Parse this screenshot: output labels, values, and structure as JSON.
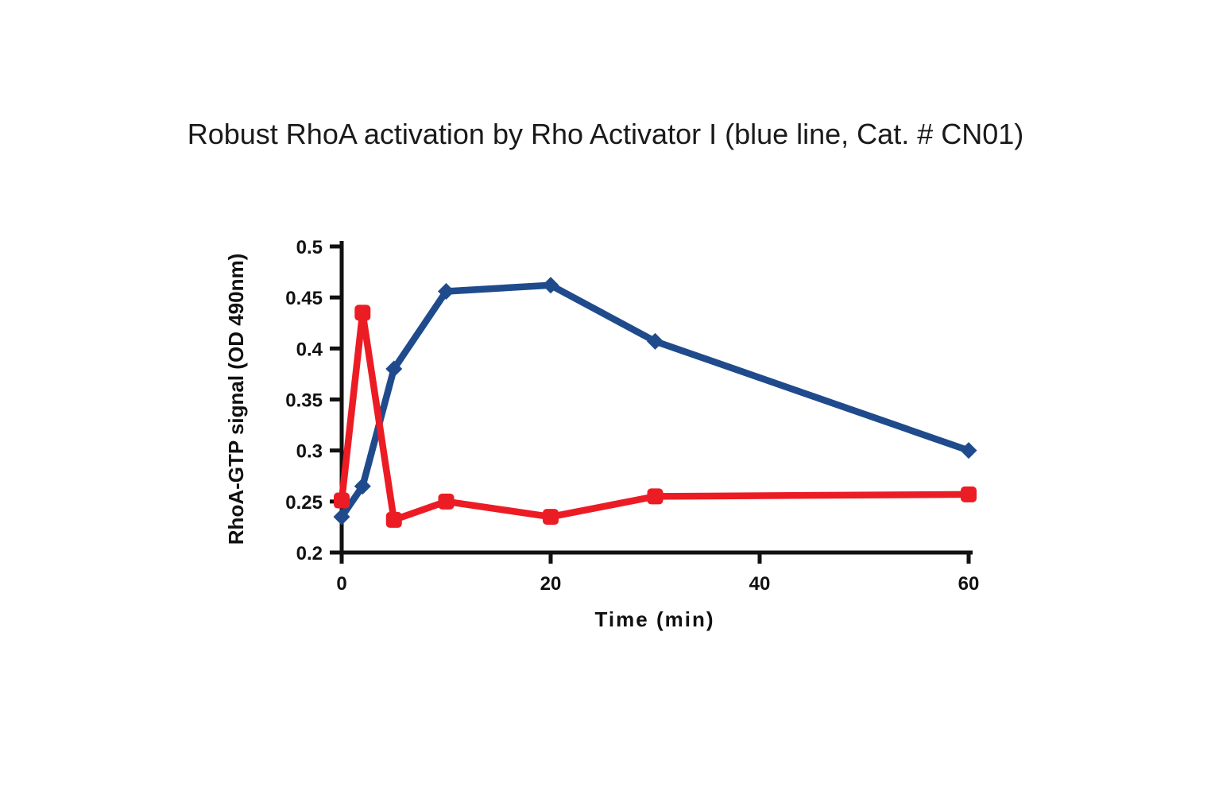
{
  "page": {
    "background": "#ffffff"
  },
  "title": "Robust RhoA activation by Rho Activator I (blue line, Cat. # CN01)",
  "chart_data": {
    "type": "line",
    "title": "Robust RhoA activation by Rho Activator I (blue line, Cat. # CN01)",
    "xlabel": "Time (min)",
    "ylabel": "RhoA-GTP signal (OD 490nm)",
    "xlim": [
      0,
      60
    ],
    "ylim": [
      0.2,
      0.5
    ],
    "xticks": [
      0,
      20,
      40,
      60
    ],
    "xtick_labels": [
      "0",
      "20",
      "40",
      "60"
    ],
    "yticks": [
      0.2,
      0.25,
      0.3,
      0.35,
      0.4,
      0.45,
      0.5
    ],
    "ytick_labels": [
      "0.2",
      "0.25",
      "0.3",
      "0.35",
      "0.4",
      "0.45",
      "0.5"
    ],
    "grid": false,
    "legend_position": "none (blue series identified in title)",
    "axis_color": "#111111",
    "x": [
      0,
      2,
      5,
      10,
      20,
      30,
      60
    ],
    "series": [
      {
        "name": "Rho Activator I (blue line, Cat. # CN01)",
        "color": "#1f4b8c",
        "marker": "diamond",
        "values": [
          0.235,
          0.265,
          0.38,
          0.456,
          0.462,
          0.407,
          0.3
        ]
      },
      {
        "name": "red line",
        "color": "#ec1c24",
        "marker": "square",
        "values": [
          0.251,
          0.435,
          0.232,
          0.25,
          0.235,
          0.255,
          0.257
        ]
      }
    ]
  }
}
